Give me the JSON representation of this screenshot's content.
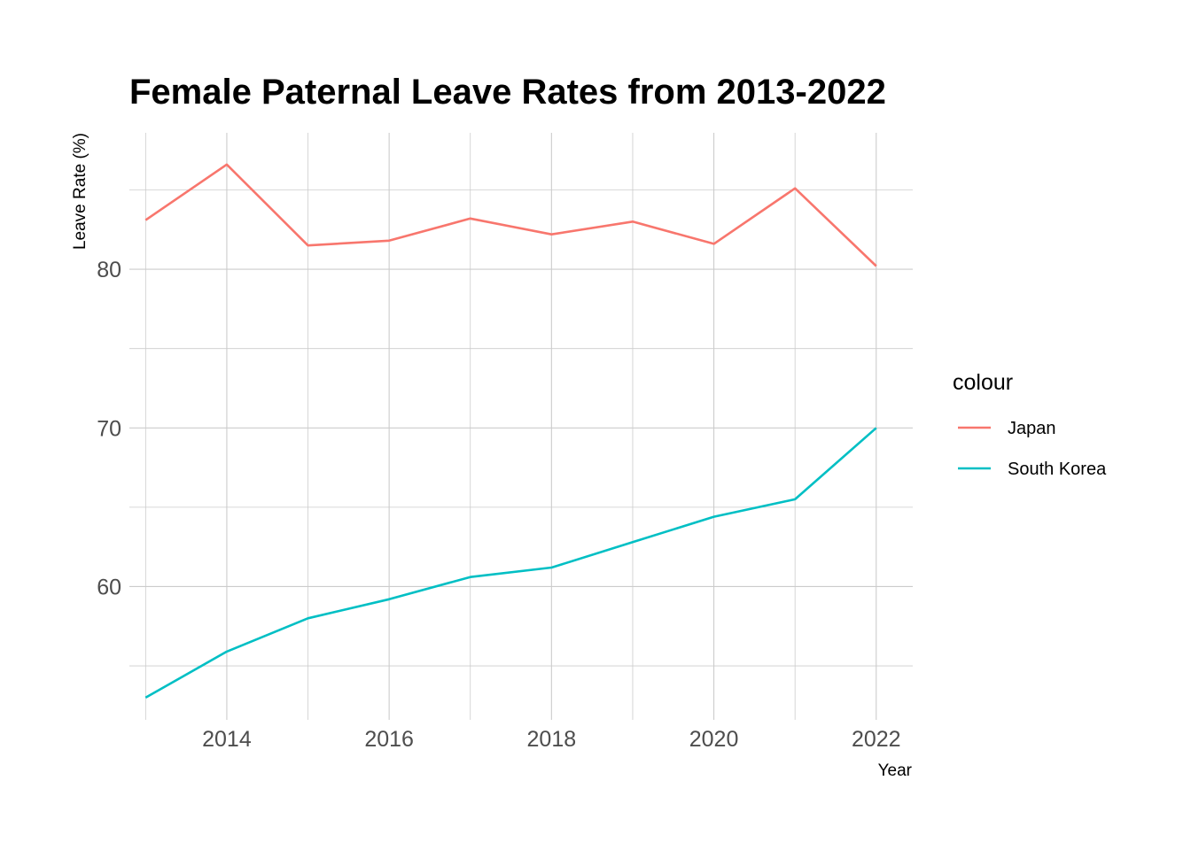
{
  "chart_data": {
    "type": "line",
    "title": "Female Paternal Leave Rates from 2013-2022",
    "xlabel": "Year",
    "ylabel": "Leave Rate (%)",
    "x": [
      2013,
      2014,
      2015,
      2016,
      2017,
      2018,
      2019,
      2020,
      2021,
      2022
    ],
    "x_ticks": [
      "2014",
      "2016",
      "2018",
      "2020",
      "2022"
    ],
    "y_ticks": [
      "60",
      "70",
      "80"
    ],
    "xlim": [
      2012.8,
      2022.45
    ],
    "ylim": [
      51.6,
      88.6
    ],
    "grid": true,
    "legend": {
      "title": "colour",
      "position": "right"
    },
    "series": [
      {
        "name": "Japan",
        "color": "#F8766D",
        "values": [
          83.1,
          86.6,
          81.5,
          81.8,
          83.2,
          82.2,
          83.0,
          81.6,
          85.1,
          80.2
        ]
      },
      {
        "name": "South Korea",
        "color": "#00BFC4",
        "values": [
          53.0,
          55.9,
          58.0,
          59.2,
          60.6,
          61.2,
          62.8,
          64.4,
          65.5,
          70.0
        ]
      }
    ]
  }
}
